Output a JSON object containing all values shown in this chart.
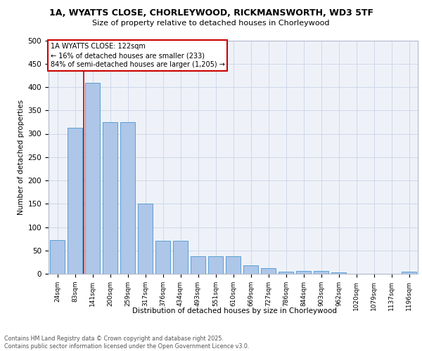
{
  "title_line1": "1A, WYATTS CLOSE, CHORLEYWOOD, RICKMANSWORTH, WD3 5TF",
  "title_line2": "Size of property relative to detached houses in Chorleywood",
  "xlabel": "Distribution of detached houses by size in Chorleywood",
  "ylabel": "Number of detached properties",
  "categories": [
    "24sqm",
    "83sqm",
    "141sqm",
    "200sqm",
    "259sqm",
    "317sqm",
    "376sqm",
    "434sqm",
    "493sqm",
    "551sqm",
    "610sqm",
    "669sqm",
    "727sqm",
    "786sqm",
    "844sqm",
    "903sqm",
    "962sqm",
    "1020sqm",
    "1079sqm",
    "1137sqm",
    "1196sqm"
  ],
  "values": [
    72,
    313,
    409,
    325,
    325,
    150,
    70,
    70,
    38,
    37,
    37,
    18,
    12,
    5,
    6,
    6,
    3,
    0,
    0,
    0,
    5
  ],
  "bar_color": "#aec6e8",
  "bar_edge_color": "#5a9fd4",
  "grid_color": "#d0d8e8",
  "background_color": "#eef2f8",
  "annotation_line1": "1A WYATTS CLOSE: 122sqm",
  "annotation_line2": "← 16% of detached houses are smaller (233)",
  "annotation_line3": "84% of semi-detached houses are larger (1,205) →",
  "annotation_box_color": "#ffffff",
  "annotation_box_edge": "#cc0000",
  "red_line_x": 1.5,
  "footer_text": "Contains HM Land Registry data © Crown copyright and database right 2025.\nContains public sector information licensed under the Open Government Licence v3.0.",
  "ylim": [
    0,
    500
  ],
  "yticks": [
    0,
    50,
    100,
    150,
    200,
    250,
    300,
    350,
    400,
    450,
    500
  ]
}
